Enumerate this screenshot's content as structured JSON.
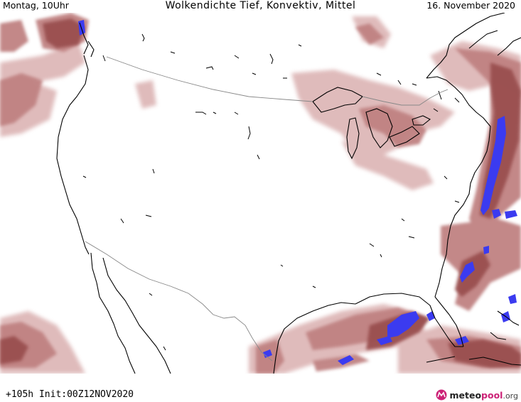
{
  "header": {
    "left": "Montag, 10Uhr",
    "center": "Wolkendichte   Tief, Konvektiv, Mittel",
    "right": "16. November 2020"
  },
  "footer": {
    "run_info": "+105h  Init:00Z12NOV2020",
    "logo": {
      "part1": "meteo",
      "part2": "pool",
      "part3": ".org"
    }
  },
  "colors": {
    "cloud_light": "#dcb4b4",
    "cloud_mid": "#c08282",
    "cloud_dark": "#9a4f50",
    "convective": "#3b3bf0",
    "coast": "#000000",
    "border": "#888888"
  }
}
